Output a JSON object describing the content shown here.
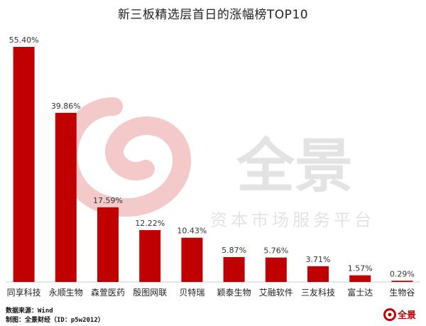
{
  "chart_data": {
    "type": "bar",
    "title": "新三板精选层首日的涨幅榜TOP10",
    "categories": [
      "同享科技",
      "永顺生物",
      "森萱医药",
      "殷图网联",
      "贝特瑞",
      "颖泰生物",
      "艾融软件",
      "三友科技",
      "富士达",
      "生物谷"
    ],
    "values": [
      55.4,
      39.86,
      17.59,
      12.22,
      10.43,
      5.87,
      5.76,
      3.71,
      1.57,
      0.29
    ],
    "value_labels": [
      "55.40%",
      "39.86%",
      "17.59%",
      "12.22%",
      "10.43%",
      "5.87%",
      "5.76%",
      "3.71%",
      "1.57%",
      "0.29%"
    ],
    "ylim": [
      0,
      55.4
    ],
    "xlabel": "",
    "ylabel": "",
    "grid": false,
    "bar_color": "#c00000"
  },
  "watermark": {
    "brand": "全景",
    "tagline": "资本市场服务平台",
    "color": "#e3e3e3",
    "swirl_color": "#f3c9c9"
  },
  "footer": {
    "source": "数据来源：Wind",
    "credit": "制图：全景财经（ID：p5w2012）"
  },
  "logo": {
    "text": "全景",
    "color": "#c00000"
  }
}
